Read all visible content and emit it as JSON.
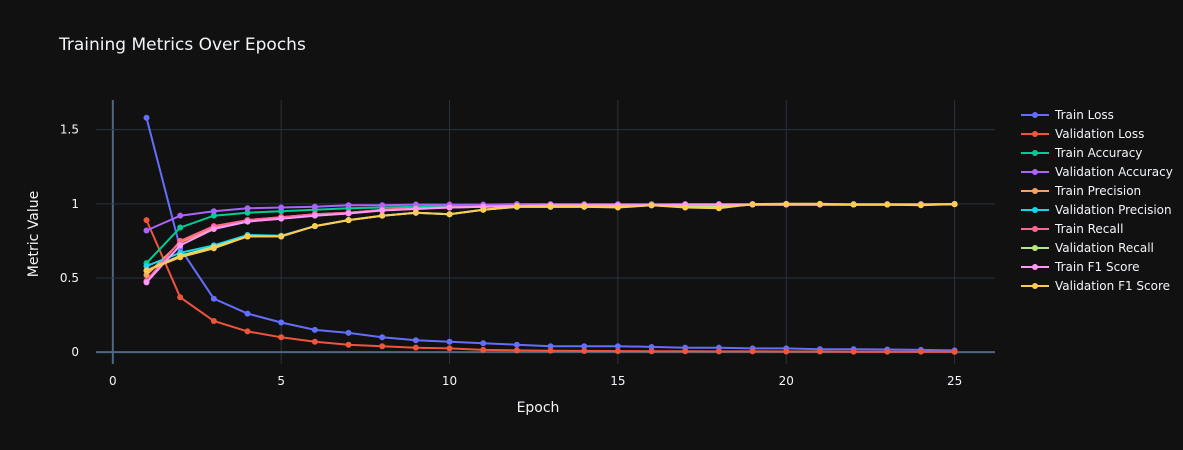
{
  "chart_data": {
    "type": "line",
    "title": "Training Metrics Over Epochs",
    "xlabel": "Epoch",
    "ylabel": "Metric Value",
    "xlim": [
      -0.5,
      26.2
    ],
    "ylim": [
      -0.08,
      1.7
    ],
    "x_ticks": [
      0,
      5,
      10,
      15,
      20,
      25
    ],
    "y_ticks": [
      0,
      0.5,
      1,
      1.5
    ],
    "x_tick_labels": [
      "0",
      "5",
      "10",
      "15",
      "20",
      "25"
    ],
    "y_tick_labels": [
      "0",
      "0.5",
      "1",
      "1.5"
    ],
    "grid": true,
    "legend_position": "right",
    "x": [
      1,
      2,
      3,
      4,
      5,
      6,
      7,
      8,
      9,
      10,
      11,
      12,
      13,
      14,
      15,
      16,
      17,
      18,
      19,
      20,
      21,
      22,
      23,
      24,
      25
    ],
    "series": [
      {
        "name": "Train Loss",
        "color": "#636efa",
        "values": [
          1.58,
          0.7,
          0.36,
          0.26,
          0.2,
          0.15,
          0.13,
          0.1,
          0.08,
          0.07,
          0.06,
          0.05,
          0.04,
          0.04,
          0.04,
          0.035,
          0.03,
          0.03,
          0.025,
          0.025,
          0.02,
          0.02,
          0.018,
          0.015,
          0.012
        ]
      },
      {
        "name": "Validation Loss",
        "color": "#ef553b",
        "values": [
          0.89,
          0.37,
          0.21,
          0.14,
          0.1,
          0.07,
          0.05,
          0.04,
          0.03,
          0.025,
          0.015,
          0.012,
          0.01,
          0.008,
          0.007,
          0.006,
          0.006,
          0.005,
          0.005,
          0.004,
          0.004,
          0.003,
          0.003,
          0.003,
          0.002
        ]
      },
      {
        "name": "Train Accuracy",
        "color": "#00cc96",
        "values": [
          0.6,
          0.84,
          0.92,
          0.94,
          0.95,
          0.96,
          0.97,
          0.975,
          0.98,
          0.985,
          0.99,
          0.99,
          0.99,
          0.995,
          0.995,
          0.995,
          0.995,
          0.995,
          0.995,
          0.998,
          0.998,
          0.998,
          0.998,
          0.998,
          0.999
        ]
      },
      {
        "name": "Validation Accuracy",
        "color": "#ab63fa",
        "values": [
          0.82,
          0.92,
          0.95,
          0.97,
          0.975,
          0.98,
          0.99,
          0.99,
          0.995,
          0.995,
          0.995,
          0.998,
          0.998,
          0.998,
          0.998,
          0.998,
          0.998,
          0.998,
          0.998,
          0.998,
          0.998,
          0.998,
          0.998,
          0.998,
          0.998
        ]
      },
      {
        "name": "Train Precision",
        "color": "#ffa15a",
        "values": [
          0.52,
          0.74,
          0.84,
          0.89,
          0.91,
          0.93,
          0.94,
          0.96,
          0.97,
          0.975,
          0.98,
          0.985,
          0.99,
          0.99,
          0.99,
          0.99,
          0.995,
          0.995,
          0.995,
          0.995,
          0.995,
          0.995,
          0.995,
          0.995,
          0.998
        ]
      },
      {
        "name": "Validation Precision",
        "color": "#19d3f3",
        "values": [
          0.58,
          0.67,
          0.72,
          0.79,
          0.785,
          0.85,
          0.89,
          0.92,
          0.94,
          0.93,
          0.96,
          0.98,
          0.98,
          0.98,
          0.98,
          0.99,
          0.98,
          0.98,
          0.995,
          0.995,
          0.995,
          0.995,
          0.995,
          0.995,
          0.998
        ]
      },
      {
        "name": "Train Recall",
        "color": "#ff6692",
        "values": [
          0.48,
          0.75,
          0.85,
          0.89,
          0.91,
          0.93,
          0.94,
          0.96,
          0.97,
          0.975,
          0.98,
          0.985,
          0.99,
          0.99,
          0.99,
          0.99,
          0.995,
          0.995,
          0.995,
          0.995,
          0.995,
          0.995,
          0.995,
          0.995,
          0.998
        ]
      },
      {
        "name": "Validation Recall",
        "color": "#b6e880",
        "values": [
          0.55,
          0.65,
          0.71,
          0.78,
          0.78,
          0.85,
          0.89,
          0.92,
          0.94,
          0.93,
          0.96,
          0.98,
          0.98,
          0.98,
          0.98,
          0.99,
          0.98,
          0.98,
          0.995,
          0.995,
          0.995,
          0.995,
          0.995,
          0.995,
          0.998
        ]
      },
      {
        "name": "Train F1 Score",
        "color": "#ff97ff",
        "values": [
          0.47,
          0.72,
          0.83,
          0.88,
          0.9,
          0.92,
          0.935,
          0.955,
          0.965,
          0.975,
          0.98,
          0.985,
          0.99,
          0.99,
          0.99,
          0.99,
          0.995,
          0.995,
          0.995,
          0.995,
          0.995,
          0.995,
          0.995,
          0.995,
          0.998
        ]
      },
      {
        "name": "Validation F1 Score",
        "color": "#fecb52",
        "values": [
          0.55,
          0.64,
          0.7,
          0.78,
          0.78,
          0.85,
          0.89,
          0.92,
          0.94,
          0.93,
          0.96,
          0.98,
          0.98,
          0.98,
          0.975,
          0.99,
          0.975,
          0.97,
          0.998,
          1.0,
          1.0,
          0.995,
          0.995,
          0.99,
          0.998
        ]
      }
    ]
  },
  "colors": {
    "background": "#111111",
    "grid": "#283442",
    "zeroline": "#506784",
    "text": "#f2f5fa"
  }
}
